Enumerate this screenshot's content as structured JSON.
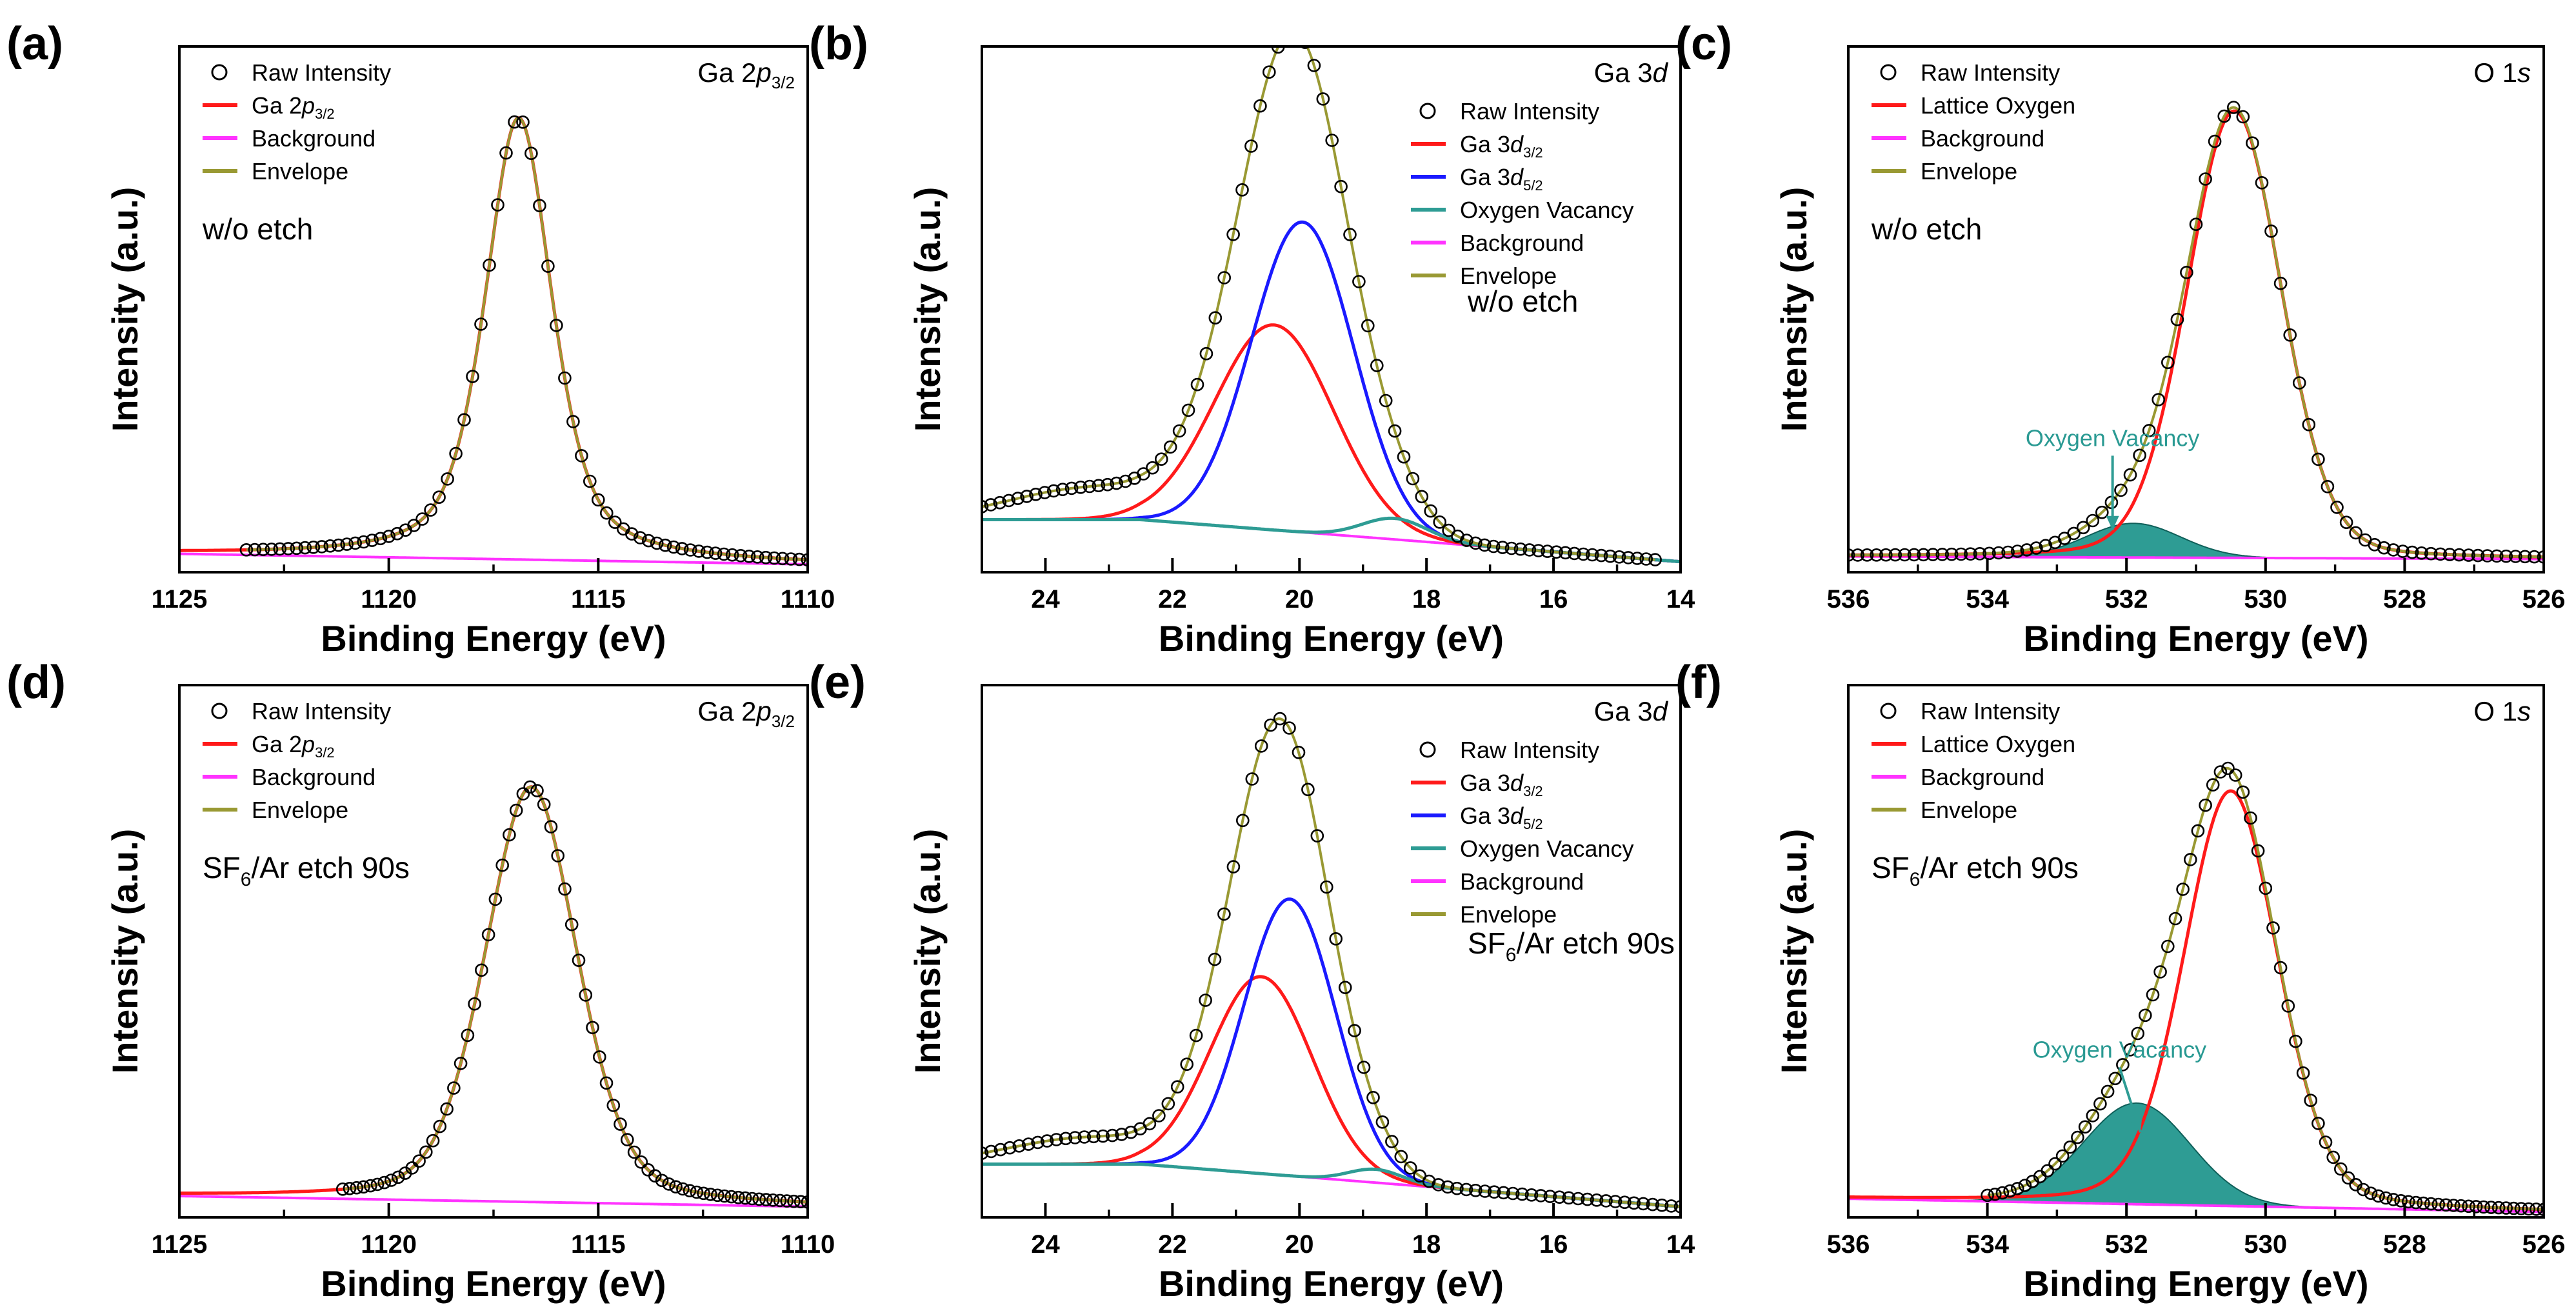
{
  "figure": {
    "panels_count": 6,
    "colors": {
      "raw": "#000000",
      "red": "#ff1a1a",
      "blue": "#1a1aff",
      "magenta": "#ff33ff",
      "olive": "#999933",
      "teal": "#2e9c94",
      "teal_text": "#2a9a93"
    }
  },
  "chart_data": [
    {
      "id": "a",
      "type": "line",
      "panel_label": "(a)",
      "xlabel": "Binding Energy (eV)",
      "ylabel": "Intensity (a.u.)",
      "xlim": [
        1125,
        1110
      ],
      "x_ticks": [
        1125,
        1120,
        1115,
        1110
      ],
      "corner": {
        "main": "Ga 2",
        "italic": "p",
        "sub": "3/2"
      },
      "condition": {
        "main": "w/o etch",
        "sub": "",
        "rest": ""
      },
      "legend": [
        {
          "main": "Raw Intensity",
          "italic": "",
          "sub": "",
          "color": "#000000",
          "kind": "circle"
        },
        {
          "main": "Ga 2",
          "italic": "p",
          "sub": "3/2",
          "color": "#ff1a1a",
          "kind": "line"
        },
        {
          "main": "Background",
          "italic": "",
          "sub": "",
          "color": "#ff33ff",
          "kind": "line"
        },
        {
          "main": "Envelope",
          "italic": "",
          "sub": "",
          "color": "#999933",
          "kind": "line"
        }
      ],
      "raw_range": [
        1123.4,
        1110
      ],
      "peaks": [
        {
          "name": "Ga 2p3/2",
          "center": 1116.9,
          "height": 0.84,
          "fwhm": 1.9,
          "eta": 0.55,
          "color": "#ff1a1a"
        }
      ],
      "background": {
        "left": 0.035,
        "right": 0.015
      }
    },
    {
      "id": "b",
      "type": "line",
      "panel_label": "(b)",
      "xlabel": "Binding Energy (eV)",
      "ylabel": "Intensity (a.u.)",
      "xlim": [
        25,
        14
      ],
      "x_ticks": [
        24,
        22,
        20,
        18,
        16,
        14
      ],
      "corner": {
        "main": "Ga 3",
        "italic": "d",
        "sub": ""
      },
      "condition": {
        "main": "w/o etch",
        "sub": "",
        "rest": ""
      },
      "legend": [
        {
          "main": "Raw Intensity",
          "italic": "",
          "sub": "",
          "color": "#000000",
          "kind": "circle"
        },
        {
          "main": "Ga 3",
          "italic": "d",
          "sub": "3/2",
          "color": "#ff1a1a",
          "kind": "line"
        },
        {
          "main": "Ga 3",
          "italic": "d",
          "sub": "5/2",
          "color": "#1a1aff",
          "kind": "line"
        },
        {
          "main": "Oxygen Vacancy",
          "italic": "",
          "sub": "",
          "color": "#2e9c94",
          "kind": "line"
        },
        {
          "main": "Background",
          "italic": "",
          "sub": "",
          "color": "#ff33ff",
          "kind": "line"
        },
        {
          "main": "Envelope",
          "italic": "",
          "sub": "",
          "color": "#999933",
          "kind": "line"
        }
      ],
      "raw_range": [
        25,
        14.4
      ],
      "peaks": [
        {
          "name": "Ga 3d3/2",
          "center": 20.4,
          "height": 0.39,
          "fwhm": 2.2,
          "eta": 0,
          "color": "#ff1a1a"
        },
        {
          "name": "Ga 3d5/2",
          "center": 19.95,
          "height": 0.59,
          "fwhm": 1.9,
          "eta": 0,
          "color": "#1a1aff"
        },
        {
          "name": "Oxygen Vacancy",
          "center": 18.5,
          "height": 0.04,
          "fwhm": 1.2,
          "eta": 0,
          "color": "#2e9c94"
        }
      ],
      "background": {
        "left": 0.1,
        "right": 0.02
      },
      "background_anchor": [
        22.5,
        14
      ],
      "bump": {
        "center": 23.3,
        "height": 0.06,
        "fwhm": 3.0
      }
    },
    {
      "id": "c",
      "type": "line",
      "panel_label": "(c)",
      "xlabel": "Binding Energy (eV)",
      "ylabel": "Intensity (a.u.)",
      "xlim": [
        536,
        526
      ],
      "x_ticks": [
        536,
        534,
        532,
        530,
        528,
        526
      ],
      "corner": {
        "main": "O 1",
        "italic": "s",
        "sub": ""
      },
      "condition": {
        "main": "w/o etch",
        "sub": "",
        "rest": ""
      },
      "legend": [
        {
          "main": "Raw Intensity",
          "italic": "",
          "sub": "",
          "color": "#000000",
          "kind": "circle"
        },
        {
          "main": "Lattice Oxygen",
          "italic": "",
          "sub": "",
          "color": "#ff1a1a",
          "kind": "line"
        },
        {
          "main": "Background",
          "italic": "",
          "sub": "",
          "color": "#ff33ff",
          "kind": "line"
        },
        {
          "main": "Envelope",
          "italic": "",
          "sub": "",
          "color": "#999933",
          "kind": "line"
        }
      ],
      "raw_range": [
        536,
        526
      ],
      "peaks": [
        {
          "name": "Lattice Oxygen",
          "center": 530.45,
          "height": 0.85,
          "fwhm": 1.6,
          "eta": 0.15,
          "color": "#ff1a1a"
        },
        {
          "name": "Oxygen Vacancy",
          "center": 531.9,
          "height": 0.065,
          "fwhm": 1.6,
          "eta": 0,
          "color": "#2e9c94",
          "fill": true
        }
      ],
      "background": {
        "left": 0.03,
        "right": 0.025
      },
      "annotation": {
        "text": "Oxygen Vacancy",
        "tx": 532.2,
        "ty": 0.24,
        "ax": 532.2,
        "ay": 0.08
      }
    },
    {
      "id": "d",
      "type": "line",
      "panel_label": "(d)",
      "xlabel": "Binding Energy (eV)",
      "ylabel": "Intensity (a.u.)",
      "xlim": [
        1125,
        1110
      ],
      "x_ticks": [
        1125,
        1120,
        1115,
        1110
      ],
      "corner": {
        "main": "Ga 2",
        "italic": "p",
        "sub": "3/2"
      },
      "condition": {
        "main": "SF",
        "sub": "6",
        "rest": "/Ar etch 90s"
      },
      "legend": [
        {
          "main": "Raw Intensity",
          "italic": "",
          "sub": "",
          "color": "#000000",
          "kind": "circle"
        },
        {
          "main": "Ga 2",
          "italic": "p",
          "sub": "3/2",
          "color": "#ff1a1a",
          "kind": "line"
        },
        {
          "main": "Background",
          "italic": "",
          "sub": "",
          "color": "#ff33ff",
          "kind": "line"
        },
        {
          "main": "Envelope",
          "italic": "",
          "sub": "",
          "color": "#999933",
          "kind": "line"
        }
      ],
      "raw_range": [
        1121.1,
        1110
      ],
      "peaks": [
        {
          "name": "Ga 2p3/2",
          "center": 1116.6,
          "height": 0.78,
          "fwhm": 2.6,
          "eta": 0.3,
          "color": "#ff1a1a"
        }
      ],
      "background": {
        "left": 0.04,
        "right": 0.02
      }
    },
    {
      "id": "e",
      "type": "line",
      "panel_label": "(e)",
      "xlabel": "Binding Energy (eV)",
      "ylabel": "Intensity (a.u.)",
      "xlim": [
        25,
        14
      ],
      "x_ticks": [
        24,
        22,
        20,
        18,
        16,
        14
      ],
      "corner": {
        "main": "Ga 3",
        "italic": "d",
        "sub": ""
      },
      "condition": {
        "main": "SF",
        "sub": "6",
        "rest": "/Ar etch 90s"
      },
      "legend": [
        {
          "main": "Raw Intensity",
          "italic": "",
          "sub": "",
          "color": "#000000",
          "kind": "circle"
        },
        {
          "main": "Ga 3",
          "italic": "d",
          "sub": "3/2",
          "color": "#ff1a1a",
          "kind": "line"
        },
        {
          "main": "Ga 3",
          "italic": "d",
          "sub": "5/2",
          "color": "#1a1aff",
          "kind": "line"
        },
        {
          "main": "Oxygen Vacancy",
          "italic": "",
          "sub": "",
          "color": "#2e9c94",
          "kind": "line"
        },
        {
          "main": "Background",
          "italic": "",
          "sub": "",
          "color": "#ff33ff",
          "kind": "line"
        },
        {
          "main": "Envelope",
          "italic": "",
          "sub": "",
          "color": "#999933",
          "kind": "line"
        }
      ],
      "raw_range": [
        25,
        14
      ],
      "peaks": [
        {
          "name": "Ga 3d3/2",
          "center": 20.6,
          "height": 0.37,
          "fwhm": 1.9,
          "eta": 0,
          "color": "#ff1a1a"
        },
        {
          "name": "Ga 3d5/2",
          "center": 20.15,
          "height": 0.52,
          "fwhm": 1.7,
          "eta": 0,
          "color": "#1a1aff"
        },
        {
          "name": "Oxygen Vacancy",
          "center": 18.8,
          "height": 0.025,
          "fwhm": 1.0,
          "eta": 0,
          "color": "#2e9c94"
        }
      ],
      "background": {
        "left": 0.1,
        "right": 0.02
      },
      "background_anchor": [
        22.5,
        14
      ],
      "bump": {
        "center": 23.3,
        "height": 0.05,
        "fwhm": 3.0
      }
    },
    {
      "id": "f",
      "type": "line",
      "panel_label": "(f)",
      "xlabel": "Binding Energy (eV)",
      "ylabel": "Intensity (a.u.)",
      "xlim": [
        536,
        526
      ],
      "x_ticks": [
        536,
        534,
        532,
        530,
        528,
        526
      ],
      "corner": {
        "main": "O 1",
        "italic": "s",
        "sub": ""
      },
      "condition": {
        "main": "SF",
        "sub": "6",
        "rest": "/Ar etch 90s"
      },
      "legend": [
        {
          "main": "Raw Intensity",
          "italic": "",
          "sub": "",
          "color": "#000000",
          "kind": "circle"
        },
        {
          "main": "Lattice Oxygen",
          "italic": "",
          "sub": "",
          "color": "#ff1a1a",
          "kind": "line"
        },
        {
          "main": "Background",
          "italic": "",
          "sub": "",
          "color": "#ff33ff",
          "kind": "line"
        },
        {
          "main": "Envelope",
          "italic": "",
          "sub": "",
          "color": "#999933",
          "kind": "line"
        }
      ],
      "raw_range": [
        534,
        526
      ],
      "peaks": [
        {
          "name": "Lattice Oxygen",
          "center": 530.5,
          "height": 0.78,
          "fwhm": 1.6,
          "eta": 0.2,
          "color": "#ff1a1a"
        },
        {
          "name": "Oxygen Vacancy",
          "center": 531.85,
          "height": 0.19,
          "fwhm": 1.8,
          "eta": 0,
          "color": "#2e9c94",
          "fill": true
        }
      ],
      "background": {
        "left": 0.035,
        "right": 0.01
      },
      "annotation": {
        "text": "Oxygen Vacancy",
        "tx": 532.1,
        "ty": 0.3,
        "ax": 531.8,
        "ay": 0.16
      }
    }
  ]
}
